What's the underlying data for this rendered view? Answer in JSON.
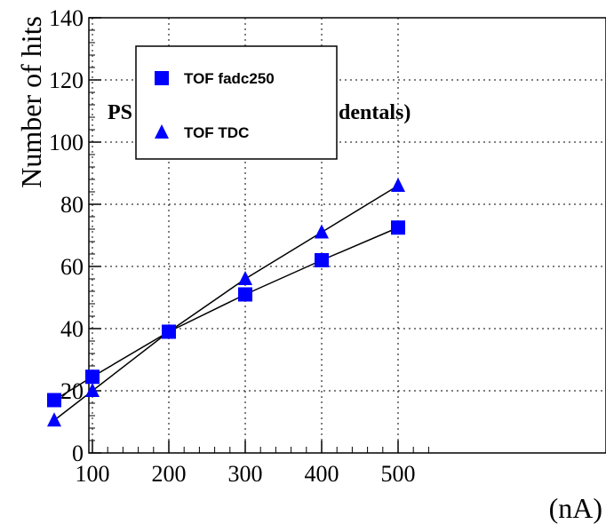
{
  "chart_data": {
    "type": "scatter",
    "title": "",
    "xlabel": "(nA)",
    "ylabel": "Number of hits",
    "xlim": [
      0,
      550
    ],
    "ylim": [
      0,
      140
    ],
    "xticks": [
      100,
      200,
      300,
      400,
      500
    ],
    "yticks": [
      0,
      20,
      40,
      60,
      80,
      100,
      120,
      140
    ],
    "grid": true,
    "legend_position": "top-left",
    "overlay_text": [
      "PS",
      "dentals)"
    ],
    "series": [
      {
        "name": "TOF fadc250",
        "marker": "square",
        "color": "#0000ff",
        "x": [
          50,
          100,
          200,
          300,
          400,
          500
        ],
        "y": [
          17,
          24.5,
          39,
          51,
          62,
          72.5
        ]
      },
      {
        "name": "TOF TDC",
        "marker": "triangle",
        "color": "#0000ff",
        "x": [
          50,
          100,
          200,
          300,
          400,
          500
        ],
        "y": [
          10.5,
          20,
          39,
          56,
          71,
          86
        ]
      }
    ]
  }
}
